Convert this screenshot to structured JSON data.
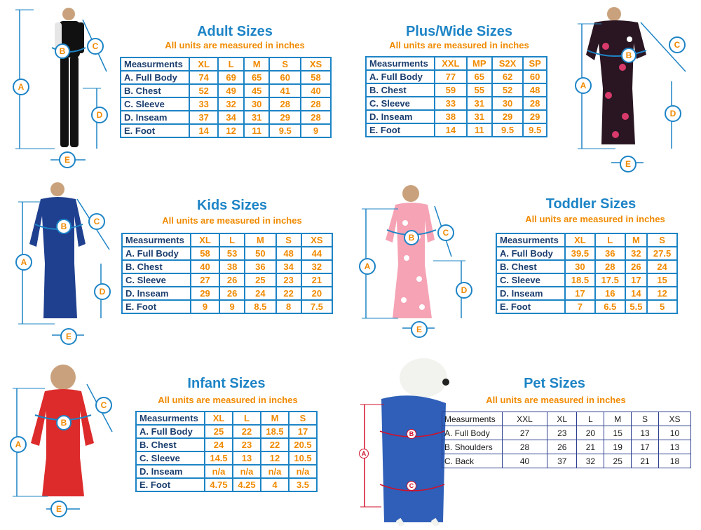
{
  "adult": {
    "title": "Adult Sizes",
    "subtitle": "All units are measured in inches",
    "header": [
      "Measurments",
      "XL",
      "L",
      "M",
      "S",
      "XS"
    ],
    "rows": [
      [
        "A. Full Body",
        "74",
        "69",
        "65",
        "60",
        "58"
      ],
      [
        "B. Chest",
        "52",
        "49",
        "45",
        "41",
        "40"
      ],
      [
        "C. Sleeve",
        "33",
        "32",
        "30",
        "28",
        "28"
      ],
      [
        "D. Inseam",
        "37",
        "34",
        "31",
        "29",
        "28"
      ],
      [
        "E. Foot",
        "14",
        "12",
        "11",
        "9.5",
        "9"
      ]
    ],
    "markers": [
      "A",
      "B",
      "C",
      "D",
      "E"
    ]
  },
  "plus": {
    "title": "Plus/Wide Sizes",
    "subtitle": "All units are measured in inches",
    "header": [
      "Measurments",
      "XXL",
      "MP",
      "S2X",
      "SP"
    ],
    "rows": [
      [
        "A. Full Body",
        "77",
        "65",
        "62",
        "60"
      ],
      [
        "B. Chest",
        "59",
        "55",
        "52",
        "48"
      ],
      [
        "C. Sleeve",
        "33",
        "31",
        "30",
        "28"
      ],
      [
        "D. Inseam",
        "38",
        "31",
        "29",
        "29"
      ],
      [
        "E. Foot",
        "14",
        "11",
        "9.5",
        "9.5"
      ]
    ],
    "markers": [
      "A",
      "B",
      "C",
      "D",
      "E"
    ]
  },
  "kids": {
    "title": "Kids Sizes",
    "subtitle": "All units are measured in inches",
    "header": [
      "Measurments",
      "XL",
      "L",
      "M",
      "S",
      "XS"
    ],
    "rows": [
      [
        "A. Full Body",
        "58",
        "53",
        "50",
        "48",
        "44"
      ],
      [
        "B. Chest",
        "40",
        "38",
        "36",
        "34",
        "32"
      ],
      [
        "C. Sleeve",
        "27",
        "26",
        "25",
        "23",
        "21"
      ],
      [
        "D. Inseam",
        "29",
        "26",
        "24",
        "22",
        "20"
      ],
      [
        "E. Foot",
        "9",
        "9",
        "8.5",
        "8",
        "7.5"
      ]
    ],
    "markers": [
      "A",
      "B",
      "C",
      "D",
      "E"
    ]
  },
  "toddler": {
    "title": "Toddler Sizes",
    "subtitle": "All units are measured in inches",
    "header": [
      "Measurments",
      "XL",
      "L",
      "M",
      "S"
    ],
    "rows": [
      [
        "A. Full Body",
        "39.5",
        "36",
        "32",
        "27.5"
      ],
      [
        "B. Chest",
        "30",
        "28",
        "26",
        "24"
      ],
      [
        "C. Sleeve",
        "18.5",
        "17.5",
        "17",
        "15"
      ],
      [
        "D. Inseam",
        "17",
        "16",
        "14",
        "12"
      ],
      [
        "E. Foot",
        "7",
        "6.5",
        "5.5",
        "5"
      ]
    ],
    "markers": [
      "A",
      "B",
      "C",
      "D",
      "E"
    ]
  },
  "infant": {
    "title": "Infant Sizes",
    "subtitle": "All units are measured in inches",
    "header": [
      "Measurments",
      "XL",
      "L",
      "M",
      "S"
    ],
    "rows": [
      [
        "A. Full Body",
        "25",
        "22",
        "18.5",
        "17"
      ],
      [
        "B. Chest",
        "24",
        "23",
        "22",
        "20.5"
      ],
      [
        "C. Sleeve",
        "14.5",
        "13",
        "12",
        "10.5"
      ],
      [
        "D. Inseam",
        "n/a",
        "n/a",
        "n/a",
        "n/a"
      ],
      [
        "E. Foot",
        "4.75",
        "4.25",
        "4",
        "3.5"
      ]
    ],
    "markers": [
      "A",
      "B",
      "C",
      "E"
    ]
  },
  "pet": {
    "title": "Pet Sizes",
    "subtitle": "All units are measured in inches",
    "header": [
      "Measurments",
      "XXL",
      "XL",
      "L",
      "M",
      "S",
      "XS"
    ],
    "rows": [
      [
        "A. Full Body",
        "27",
        "23",
        "20",
        "15",
        "13",
        "10"
      ],
      [
        "B. Shoulders",
        "28",
        "26",
        "21",
        "19",
        "17",
        "13"
      ],
      [
        "C. Back",
        "40",
        "37",
        "32",
        "25",
        "21",
        "18"
      ]
    ],
    "markers": [
      "A",
      "B",
      "C"
    ]
  },
  "colors": {
    "title_blue": "#1d84c6",
    "accent_orange": "#f08a00",
    "label_navy": "#1a3d6e",
    "pet_red": "#d0112b"
  }
}
